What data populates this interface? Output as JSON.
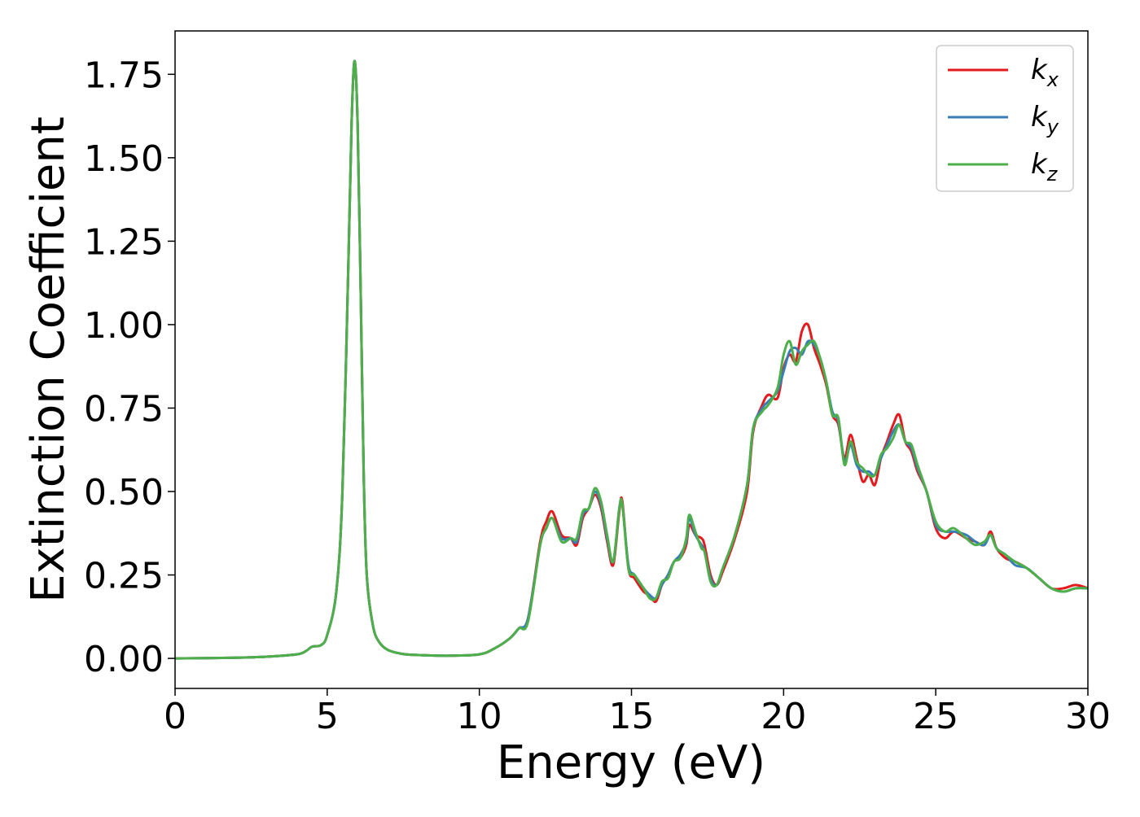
{
  "chart_data": {
    "type": "line",
    "title": "",
    "xlabel": "Energy (eV)",
    "ylabel": "Extinction Coefficient",
    "xlim": [
      0,
      30
    ],
    "ylim": [
      -0.09,
      1.88
    ],
    "xticks": [
      0,
      5,
      10,
      15,
      20,
      25,
      30
    ],
    "xtick_labels": [
      "0",
      "5",
      "10",
      "15",
      "20",
      "25",
      "30"
    ],
    "yticks": [
      0.0,
      0.25,
      0.5,
      0.75,
      1.0,
      1.25,
      1.5,
      1.75
    ],
    "ytick_labels": [
      "0.00",
      "0.25",
      "0.50",
      "0.75",
      "1.00",
      "1.25",
      "1.50",
      "1.75"
    ],
    "grid": false,
    "legend_position": "top-right",
    "series": [
      {
        "name": "k_x",
        "label_main": "k",
        "label_sub": "x",
        "color": "#e41a1c",
        "x": [
          0,
          2,
          3,
          4,
          4.3,
          4.5,
          4.8,
          5.0,
          5.3,
          5.5,
          5.7,
          5.8,
          5.9,
          6.0,
          6.1,
          6.2,
          6.3,
          6.5,
          6.7,
          7.0,
          7.5,
          8,
          9,
          10,
          10.5,
          11,
          11.3,
          11.6,
          12.0,
          12.2,
          12.4,
          12.7,
          13.0,
          13.2,
          13.4,
          13.6,
          13.8,
          14.0,
          14.2,
          14.4,
          14.6,
          14.7,
          14.9,
          15.1,
          15.4,
          15.6,
          15.8,
          16.0,
          16.2,
          16.4,
          16.6,
          16.8,
          16.9,
          17.1,
          17.3,
          17.4,
          17.6,
          17.8,
          18.0,
          18.4,
          18.8,
          19.0,
          19.3,
          19.5,
          19.8,
          20.0,
          20.2,
          20.4,
          20.6,
          20.8,
          21.0,
          21.2,
          21.4,
          21.6,
          21.8,
          22.0,
          22.2,
          22.4,
          22.6,
          22.8,
          23.0,
          23.2,
          23.4,
          23.6,
          23.8,
          24.0,
          24.2,
          24.4,
          24.7,
          25.0,
          25.3,
          25.6,
          26.0,
          26.3,
          26.6,
          26.8,
          27.0,
          27.3,
          27.6,
          28.0,
          28.4,
          28.8,
          29.2,
          29.6,
          30.0
        ],
        "y": [
          0.0,
          0.002,
          0.005,
          0.012,
          0.022,
          0.035,
          0.04,
          0.07,
          0.2,
          0.5,
          1.2,
          1.6,
          1.79,
          1.6,
          1.1,
          0.55,
          0.25,
          0.1,
          0.05,
          0.025,
          0.013,
          0.01,
          0.008,
          0.012,
          0.03,
          0.06,
          0.09,
          0.12,
          0.35,
          0.41,
          0.44,
          0.37,
          0.36,
          0.34,
          0.42,
          0.45,
          0.49,
          0.45,
          0.35,
          0.28,
          0.44,
          0.47,
          0.27,
          0.24,
          0.2,
          0.19,
          0.17,
          0.22,
          0.25,
          0.29,
          0.3,
          0.34,
          0.4,
          0.37,
          0.36,
          0.34,
          0.25,
          0.22,
          0.26,
          0.36,
          0.5,
          0.68,
          0.76,
          0.79,
          0.78,
          0.87,
          0.91,
          0.89,
          0.98,
          1.0,
          0.93,
          0.88,
          0.82,
          0.73,
          0.7,
          0.6,
          0.67,
          0.6,
          0.53,
          0.55,
          0.52,
          0.6,
          0.65,
          0.7,
          0.73,
          0.65,
          0.62,
          0.56,
          0.5,
          0.39,
          0.36,
          0.38,
          0.36,
          0.35,
          0.34,
          0.38,
          0.33,
          0.3,
          0.29,
          0.27,
          0.24,
          0.21,
          0.21,
          0.22,
          0.21
        ]
      },
      {
        "name": "k_y",
        "label_main": "k",
        "label_sub": "y",
        "color": "#377eb8",
        "x": [
          0,
          2,
          3,
          4,
          4.3,
          4.5,
          4.8,
          5.0,
          5.3,
          5.5,
          5.7,
          5.8,
          5.9,
          6.0,
          6.1,
          6.2,
          6.3,
          6.5,
          6.7,
          7.0,
          7.5,
          8,
          9,
          10,
          10.5,
          11,
          11.3,
          11.6,
          12.0,
          12.2,
          12.4,
          12.7,
          13.0,
          13.2,
          13.4,
          13.6,
          13.8,
          14.0,
          14.2,
          14.4,
          14.6,
          14.7,
          14.9,
          15.1,
          15.4,
          15.6,
          15.8,
          16.0,
          16.2,
          16.4,
          16.6,
          16.8,
          16.9,
          17.1,
          17.3,
          17.4,
          17.6,
          17.8,
          18.0,
          18.4,
          18.8,
          19.0,
          19.3,
          19.5,
          19.8,
          20.0,
          20.2,
          20.4,
          20.6,
          20.8,
          21.0,
          21.2,
          21.4,
          21.6,
          21.8,
          22.0,
          22.2,
          22.4,
          22.6,
          22.8,
          23.0,
          23.2,
          23.4,
          23.6,
          23.8,
          24.0,
          24.2,
          24.4,
          24.7,
          25.0,
          25.3,
          25.6,
          26.0,
          26.3,
          26.6,
          26.8,
          27.0,
          27.3,
          27.6,
          28.0,
          28.4,
          28.8,
          29.2,
          29.6,
          30.0
        ],
        "y": [
          0.0,
          0.002,
          0.005,
          0.012,
          0.022,
          0.035,
          0.04,
          0.07,
          0.2,
          0.5,
          1.2,
          1.6,
          1.79,
          1.6,
          1.1,
          0.55,
          0.25,
          0.1,
          0.05,
          0.025,
          0.013,
          0.01,
          0.008,
          0.012,
          0.03,
          0.06,
          0.09,
          0.12,
          0.34,
          0.39,
          0.42,
          0.36,
          0.36,
          0.35,
          0.43,
          0.45,
          0.5,
          0.46,
          0.36,
          0.29,
          0.45,
          0.46,
          0.28,
          0.25,
          0.21,
          0.19,
          0.18,
          0.22,
          0.25,
          0.29,
          0.31,
          0.35,
          0.42,
          0.37,
          0.34,
          0.32,
          0.24,
          0.22,
          0.27,
          0.37,
          0.52,
          0.69,
          0.75,
          0.77,
          0.8,
          0.86,
          0.92,
          0.93,
          0.91,
          0.95,
          0.94,
          0.9,
          0.83,
          0.74,
          0.71,
          0.59,
          0.64,
          0.58,
          0.56,
          0.56,
          0.55,
          0.6,
          0.64,
          0.68,
          0.7,
          0.65,
          0.63,
          0.57,
          0.5,
          0.4,
          0.38,
          0.38,
          0.37,
          0.35,
          0.34,
          0.37,
          0.33,
          0.31,
          0.28,
          0.27,
          0.24,
          0.21,
          0.2,
          0.21,
          0.21
        ]
      },
      {
        "name": "k_z",
        "label_main": "k",
        "label_sub": "z",
        "color": "#4daf4a",
        "x": [
          0,
          2,
          3,
          4,
          4.3,
          4.5,
          4.8,
          5.0,
          5.3,
          5.5,
          5.7,
          5.8,
          5.9,
          6.0,
          6.1,
          6.2,
          6.3,
          6.5,
          6.7,
          7.0,
          7.5,
          8,
          9,
          10,
          10.5,
          11,
          11.3,
          11.6,
          12.0,
          12.2,
          12.4,
          12.7,
          13.0,
          13.2,
          13.4,
          13.6,
          13.8,
          14.0,
          14.2,
          14.4,
          14.6,
          14.7,
          14.9,
          15.1,
          15.4,
          15.6,
          15.8,
          16.0,
          16.2,
          16.4,
          16.6,
          16.8,
          16.9,
          17.1,
          17.3,
          17.4,
          17.6,
          17.8,
          18.0,
          18.4,
          18.8,
          19.0,
          19.3,
          19.5,
          19.8,
          20.0,
          20.2,
          20.4,
          20.6,
          20.8,
          21.0,
          21.2,
          21.4,
          21.6,
          21.8,
          22.0,
          22.2,
          22.4,
          22.6,
          22.8,
          23.0,
          23.2,
          23.4,
          23.6,
          23.8,
          24.0,
          24.2,
          24.4,
          24.7,
          25.0,
          25.3,
          25.6,
          26.0,
          26.3,
          26.6,
          26.8,
          27.0,
          27.3,
          27.6,
          28.0,
          28.4,
          28.8,
          29.2,
          29.6,
          30.0
        ],
        "y": [
          0.0,
          0.002,
          0.005,
          0.012,
          0.022,
          0.035,
          0.04,
          0.07,
          0.2,
          0.5,
          1.2,
          1.6,
          1.79,
          1.6,
          1.1,
          0.55,
          0.25,
          0.1,
          0.05,
          0.025,
          0.013,
          0.01,
          0.008,
          0.012,
          0.03,
          0.06,
          0.09,
          0.11,
          0.34,
          0.39,
          0.42,
          0.35,
          0.36,
          0.36,
          0.44,
          0.45,
          0.51,
          0.47,
          0.37,
          0.29,
          0.45,
          0.46,
          0.27,
          0.25,
          0.21,
          0.18,
          0.18,
          0.23,
          0.24,
          0.29,
          0.3,
          0.36,
          0.43,
          0.38,
          0.33,
          0.32,
          0.23,
          0.22,
          0.27,
          0.37,
          0.52,
          0.69,
          0.74,
          0.76,
          0.81,
          0.91,
          0.95,
          0.88,
          0.92,
          0.94,
          0.95,
          0.9,
          0.83,
          0.73,
          0.72,
          0.58,
          0.65,
          0.59,
          0.57,
          0.55,
          0.55,
          0.61,
          0.63,
          0.66,
          0.7,
          0.65,
          0.64,
          0.58,
          0.5,
          0.41,
          0.38,
          0.39,
          0.36,
          0.34,
          0.35,
          0.37,
          0.33,
          0.31,
          0.29,
          0.27,
          0.24,
          0.21,
          0.2,
          0.21,
          0.21
        ]
      }
    ]
  }
}
